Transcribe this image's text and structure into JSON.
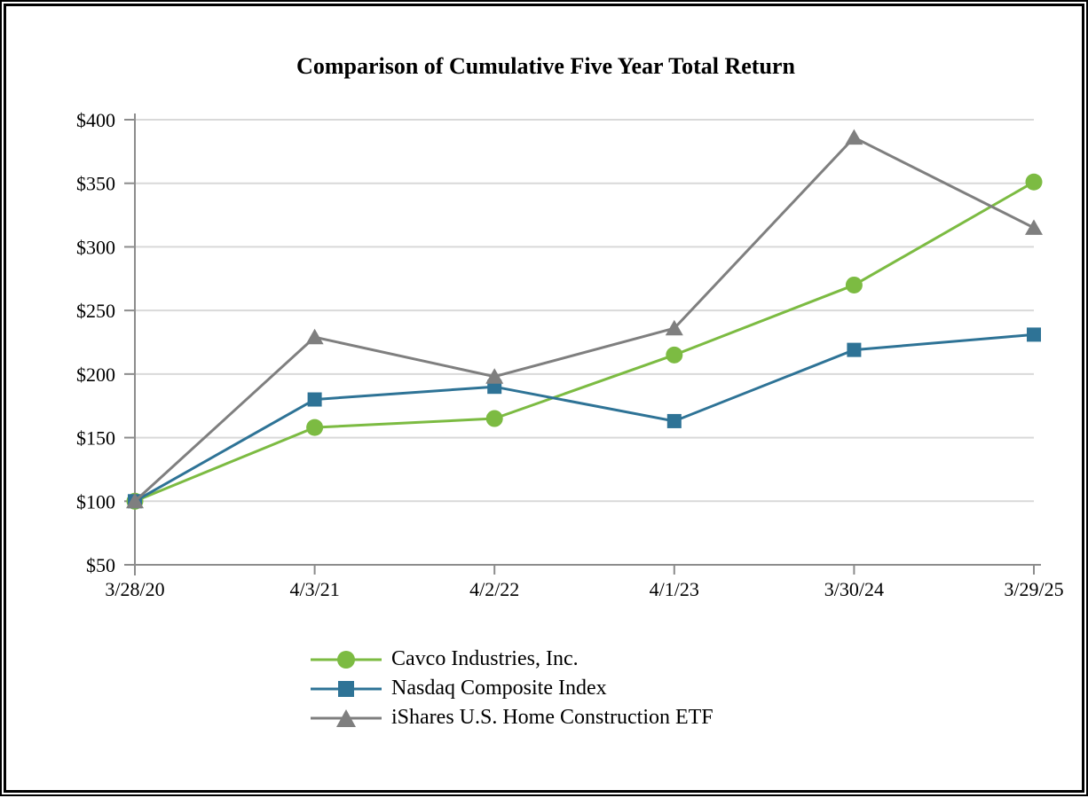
{
  "title": "Comparison of Cumulative Five Year Total Return",
  "colors": {
    "cavco_green": "#7CBB42",
    "nasdaq_blue": "#2E7396",
    "ishares_gray": "#7F7F7F",
    "gridline": "#D9D9D9",
    "axis": "#8C8C8C",
    "text": "#000000",
    "background": "#FFFFFF",
    "frame_border": "#000000"
  },
  "chart_data": {
    "type": "line",
    "title": "Comparison of Cumulative Five Year Total Return",
    "categories": [
      "3/28/20",
      "4/3/21",
      "4/2/22",
      "4/1/23",
      "3/30/24",
      "3/29/25"
    ],
    "series": [
      {
        "name": "Cavco Industries, Inc.",
        "marker": "circle",
        "color": "#7CBB42",
        "values": [
          100,
          158,
          165,
          215,
          270,
          351
        ]
      },
      {
        "name": "Nasdaq Composite Index",
        "marker": "square",
        "color": "#2E7396",
        "values": [
          100,
          180,
          190,
          163,
          219,
          231
        ]
      },
      {
        "name": "iShares U.S. Home Construction ETF",
        "marker": "triangle",
        "color": "#7F7F7F",
        "values": [
          100,
          229,
          198,
          236,
          386,
          315
        ]
      }
    ],
    "xlabel": "",
    "ylabel": "",
    "ylim": [
      50,
      400
    ],
    "ytick_step": 50,
    "ytick_labels": [
      "$50",
      "$100",
      "$150",
      "$200",
      "$250",
      "$300",
      "$350",
      "$400"
    ],
    "grid": true,
    "legend_position": "bottom-center"
  }
}
